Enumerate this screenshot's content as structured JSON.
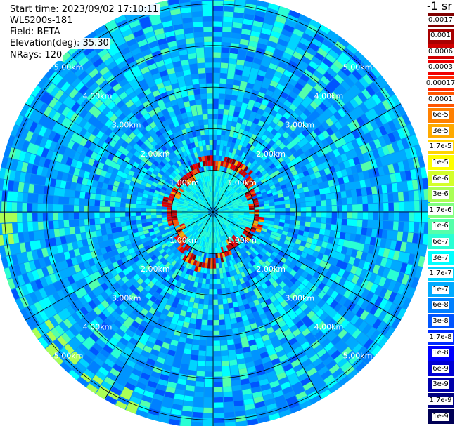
{
  "info": {
    "start_time": "Start time: 2023/09/02 17:10:11",
    "instrument": "WLS200s-181",
    "field": "Field: BETA",
    "elevation": "Elevation(deg): 35.30",
    "nrays": "NRays: 120"
  },
  "chart_data": {
    "type": "heatmap",
    "projection": "polar-ppi",
    "range_rings_km": [
      1,
      2,
      3,
      4,
      5
    ],
    "ring_labels": [
      "1.00km",
      "2.00km",
      "3.00km",
      "4.00km",
      "5.00km"
    ],
    "max_range_km": 5.2,
    "n_rays": 120,
    "colorbar_unit": "-1 sr",
    "colorbar": [
      {
        "label": "0.0017",
        "color": "#800000"
      },
      {
        "label": "0.001",
        "color": "#a80000"
      },
      {
        "label": "0.0006",
        "color": "#d00000"
      },
      {
        "label": "0.0003",
        "color": "#f00000"
      },
      {
        "label": "0.00017",
        "color": "#ff2800"
      },
      {
        "label": "0.0001",
        "color": "#ff5500"
      },
      {
        "label": "6e-5",
        "color": "#ff8000"
      },
      {
        "label": "3e-5",
        "color": "#ffaa00"
      },
      {
        "label": "1.7e-5",
        "color": "#ffd400"
      },
      {
        "label": "1e-5",
        "color": "#ffff00"
      },
      {
        "label": "6e-6",
        "color": "#d4ff2a"
      },
      {
        "label": "3e-6",
        "color": "#aaff55"
      },
      {
        "label": "1.7e-6",
        "color": "#80ff80"
      },
      {
        "label": "1e-6",
        "color": "#55ffaa"
      },
      {
        "label": "6e-7",
        "color": "#2affd4"
      },
      {
        "label": "3e-7",
        "color": "#00ffff"
      },
      {
        "label": "1.7e-7",
        "color": "#00d4ff"
      },
      {
        "label": "1e-7",
        "color": "#00aaff"
      },
      {
        "label": "6e-8",
        "color": "#0080ff"
      },
      {
        "label": "3e-8",
        "color": "#0055ff"
      },
      {
        "label": "1.7e-8",
        "color": "#002aff"
      },
      {
        "label": "1e-8",
        "color": "#0000ff"
      },
      {
        "label": "6e-9",
        "color": "#0000d4"
      },
      {
        "label": "3e-9",
        "color": "#0000aa"
      },
      {
        "label": "1.7e-9",
        "color": "#000080"
      },
      {
        "label": "1e-9",
        "color": "#000055"
      }
    ]
  }
}
